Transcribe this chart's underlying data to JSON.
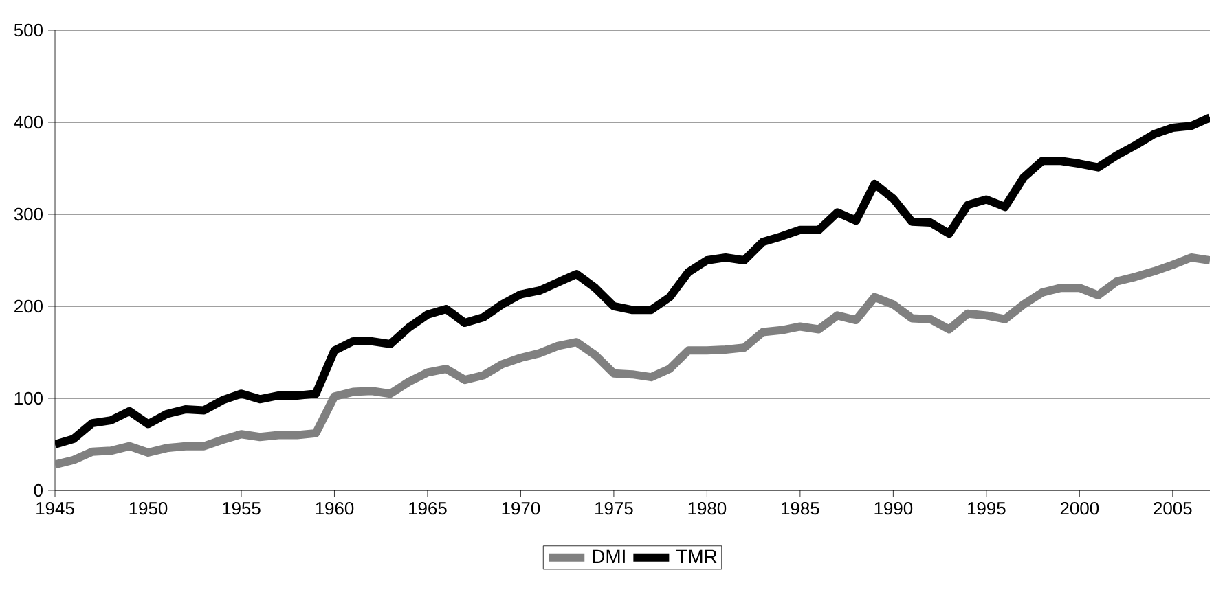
{
  "chart_data": {
    "type": "line",
    "x": [
      1945,
      1946,
      1947,
      1948,
      1949,
      1950,
      1951,
      1952,
      1953,
      1954,
      1955,
      1956,
      1957,
      1958,
      1959,
      1960,
      1961,
      1962,
      1963,
      1964,
      1965,
      1966,
      1967,
      1968,
      1969,
      1970,
      1971,
      1972,
      1973,
      1974,
      1975,
      1976,
      1977,
      1978,
      1979,
      1980,
      1981,
      1982,
      1983,
      1984,
      1985,
      1986,
      1987,
      1988,
      1989,
      1990,
      1991,
      1992,
      1993,
      1994,
      1995,
      1996,
      1997,
      1998,
      1999,
      2000,
      2001,
      2002,
      2003,
      2004,
      2005,
      2006,
      2007
    ],
    "series": [
      {
        "name": "DMI",
        "color": "#808080",
        "values": [
          28,
          33,
          42,
          43,
          48,
          41,
          46,
          48,
          48,
          55,
          61,
          58,
          60,
          60,
          62,
          102,
          107,
          108,
          105,
          118,
          128,
          132,
          120,
          125,
          137,
          144,
          149,
          157,
          161,
          147,
          127,
          126,
          123,
          132,
          152,
          152,
          153,
          155,
          172,
          174,
          178,
          175,
          190,
          185,
          210,
          202,
          187,
          186,
          175,
          192,
          190,
          186,
          202,
          215,
          220,
          220,
          212,
          227,
          232,
          238,
          245,
          253,
          250
        ]
      },
      {
        "name": "TMR",
        "color": "#000000",
        "values": [
          50,
          56,
          73,
          76,
          86,
          72,
          83,
          88,
          87,
          98,
          105,
          99,
          103,
          103,
          105,
          152,
          162,
          162,
          159,
          177,
          191,
          197,
          182,
          188,
          202,
          213,
          217,
          226,
          235,
          220,
          200,
          196,
          196,
          210,
          237,
          250,
          253,
          250,
          270,
          276,
          283,
          283,
          302,
          293,
          333,
          317,
          292,
          291,
          279,
          310,
          316,
          308,
          340,
          358,
          358,
          355,
          351,
          364,
          375,
          387,
          394,
          396,
          405
        ]
      }
    ],
    "xlim": [
      1945,
      2007
    ],
    "xticks": [
      1945,
      1950,
      1955,
      1960,
      1965,
      1970,
      1975,
      1980,
      1985,
      1990,
      1995,
      2000,
      2005
    ],
    "ylim": [
      0,
      500
    ],
    "yticks": [
      0,
      100,
      200,
      300,
      400,
      500
    ],
    "grid": "y",
    "legend": "bottom",
    "marker": "none",
    "line_style": "solid"
  }
}
